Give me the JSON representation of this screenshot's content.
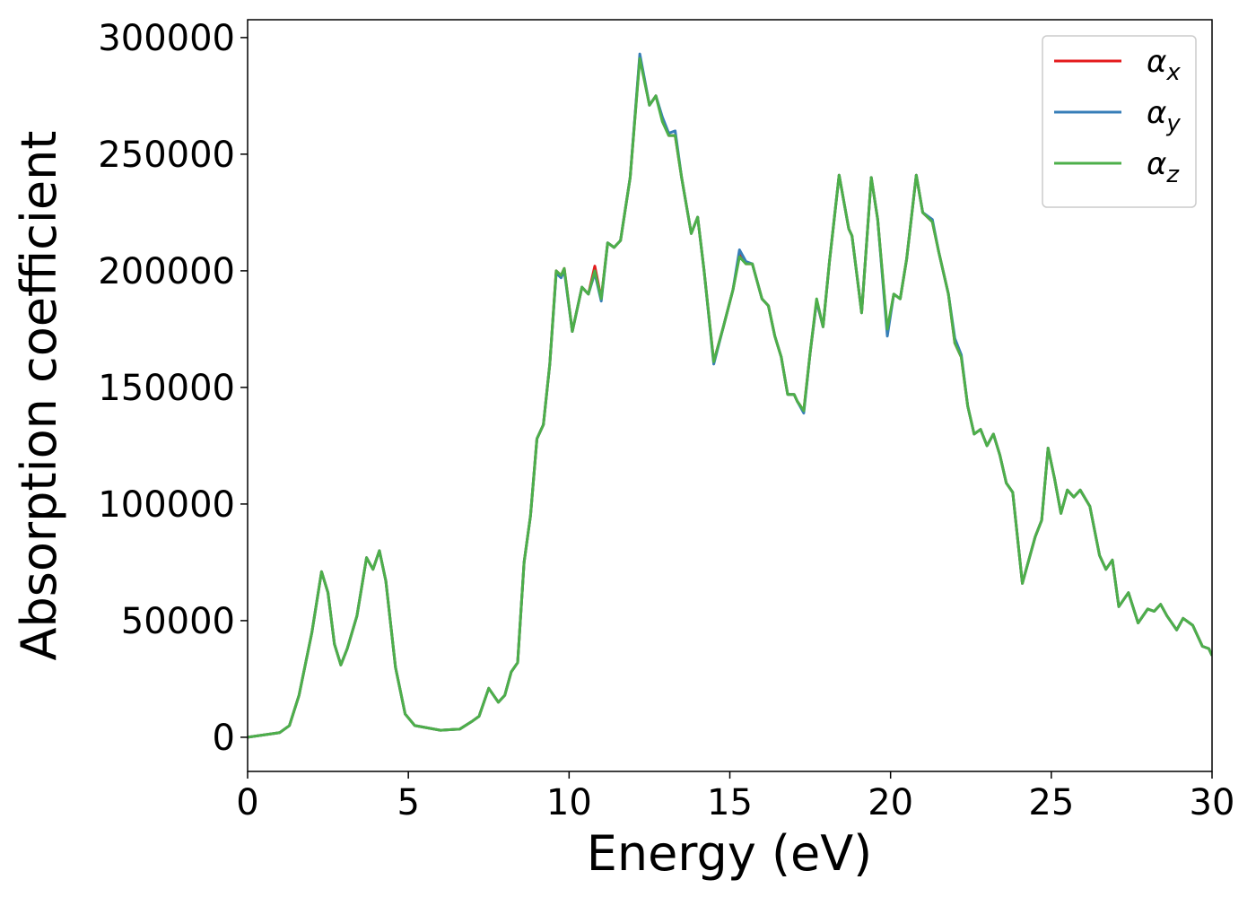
{
  "chart_data": {
    "type": "line",
    "xlabel": "Energy (eV)",
    "ylabel": "Absorption coefficient",
    "xlim": [
      0,
      30
    ],
    "ylim": [
      -14650,
      307650
    ],
    "xticks": [
      0,
      5,
      10,
      15,
      20,
      25,
      30
    ],
    "yticks": [
      0,
      50000,
      100000,
      150000,
      200000,
      250000,
      300000
    ],
    "legend": "upper right",
    "grid": false,
    "x": [
      0,
      1.0,
      1.3,
      1.6,
      2.0,
      2.3,
      2.5,
      2.7,
      2.9,
      3.1,
      3.4,
      3.7,
      3.9,
      4.1,
      4.3,
      4.6,
      4.9,
      5.2,
      6.0,
      6.6,
      7.0,
      7.2,
      7.5,
      7.8,
      8.0,
      8.2,
      8.4,
      8.6,
      8.8,
      9.0,
      9.2,
      9.4,
      9.6,
      9.75,
      9.85,
      10.1,
      10.4,
      10.6,
      10.8,
      11.0,
      11.2,
      11.4,
      11.6,
      11.9,
      12.2,
      12.5,
      12.7,
      12.9,
      13.1,
      13.3,
      13.5,
      13.8,
      14.0,
      14.2,
      14.5,
      14.8,
      15.1,
      15.3,
      15.5,
      15.7,
      16.0,
      16.2,
      16.4,
      16.6,
      16.8,
      17.0,
      17.1,
      17.3,
      17.5,
      17.7,
      17.9,
      18.1,
      18.4,
      18.7,
      18.8,
      19.1,
      19.4,
      19.6,
      19.9,
      20.1,
      20.3,
      20.5,
      20.8,
      21.0,
      21.3,
      21.5,
      21.8,
      22.0,
      22.2,
      22.4,
      22.6,
      22.8,
      23.0,
      23.2,
      23.4,
      23.6,
      23.8,
      24.1,
      24.3,
      24.5,
      24.7,
      24.9,
      25.1,
      25.3,
      25.5,
      25.7,
      25.9,
      26.2,
      26.5,
      26.7,
      26.9,
      27.1,
      27.4,
      27.7,
      28.0,
      28.2,
      28.4,
      28.6,
      28.9,
      29.1,
      29.4,
      29.7,
      29.9,
      30.0
    ],
    "series": [
      {
        "name": "αx",
        "color": "#e41a1c",
        "values": [
          0,
          2000,
          5000,
          18000,
          45000,
          71000,
          62000,
          40000,
          31000,
          38000,
          52000,
          77000,
          72000,
          80000,
          67000,
          30000,
          10000,
          5000,
          3000,
          3500,
          7000,
          9000,
          21000,
          15000,
          18000,
          28000,
          32000,
          75000,
          95000,
          128000,
          134000,
          160000,
          200000,
          198000,
          201000,
          174000,
          193000,
          190000,
          202000,
          188000,
          212000,
          210000,
          213000,
          240000,
          292000,
          271000,
          275000,
          265000,
          258000,
          258000,
          240000,
          216000,
          223000,
          200000,
          161000,
          176000,
          192000,
          207000,
          203000,
          203000,
          188000,
          185000,
          172000,
          163000,
          147000,
          147000,
          144000,
          140000,
          165000,
          187000,
          176000,
          204000,
          241000,
          218000,
          215000,
          182000,
          240000,
          222000,
          174000,
          190000,
          188000,
          205000,
          241000,
          225000,
          221000,
          208000,
          190000,
          169000,
          163000,
          142000,
          130000,
          132000,
          125000,
          130000,
          121000,
          109000,
          105000,
          66000,
          76000,
          86000,
          93000,
          124000,
          111000,
          96000,
          106000,
          103000,
          106000,
          99000,
          78000,
          72000,
          76000,
          56000,
          62000,
          49000,
          55000,
          54000,
          57000,
          52000,
          46000,
          51000,
          48000,
          39000,
          38000,
          35000
        ]
      },
      {
        "name": "αy",
        "color": "#377eb8",
        "values": [
          0,
          2000,
          5000,
          18000,
          45000,
          71000,
          62000,
          40000,
          31000,
          38000,
          52000,
          77000,
          72000,
          80000,
          67000,
          30000,
          10000,
          5000,
          3000,
          3500,
          7000,
          9000,
          21000,
          15000,
          18000,
          28000,
          32000,
          75000,
          95000,
          128000,
          134000,
          160000,
          199000,
          197000,
          200000,
          174000,
          193000,
          190000,
          199000,
          187000,
          212000,
          210000,
          213000,
          240000,
          293000,
          271000,
          275000,
          266000,
          259000,
          260000,
          240000,
          216000,
          223000,
          200000,
          160000,
          176000,
          192000,
          209000,
          204000,
          203000,
          188000,
          185000,
          172000,
          163000,
          147000,
          147000,
          144000,
          139000,
          165000,
          187000,
          176000,
          204000,
          241000,
          218000,
          215000,
          182000,
          240000,
          222000,
          172000,
          190000,
          188000,
          205000,
          241000,
          225000,
          222000,
          208000,
          190000,
          171000,
          164000,
          142000,
          130000,
          132000,
          125000,
          130000,
          121000,
          109000,
          105000,
          66000,
          76000,
          86000,
          93000,
          124000,
          111000,
          96000,
          106000,
          103000,
          106000,
          99000,
          78000,
          72000,
          76000,
          56000,
          62000,
          49000,
          55000,
          54000,
          57000,
          52000,
          46000,
          51000,
          48000,
          39000,
          38000,
          35000
        ]
      },
      {
        "name": "αz",
        "color": "#4daf4a",
        "values": [
          0,
          2000,
          5000,
          18000,
          45000,
          71000,
          62000,
          40000,
          31000,
          38000,
          52000,
          77000,
          72000,
          80000,
          67000,
          30000,
          10000,
          5000,
          3000,
          3500,
          7000,
          9000,
          21000,
          15000,
          18000,
          28000,
          32000,
          75000,
          95000,
          128000,
          134000,
          160000,
          200000,
          198000,
          201000,
          174000,
          193000,
          190000,
          200000,
          188000,
          212000,
          210000,
          213000,
          240000,
          291000,
          271000,
          275000,
          264000,
          258000,
          258000,
          240000,
          216000,
          223000,
          200000,
          161000,
          176000,
          192000,
          206000,
          203000,
          203000,
          188000,
          185000,
          172000,
          163000,
          147000,
          147000,
          144000,
          140000,
          165000,
          188000,
          176000,
          204000,
          241000,
          218000,
          215000,
          182000,
          240000,
          222000,
          175000,
          190000,
          188000,
          205000,
          241000,
          225000,
          221000,
          208000,
          190000,
          169000,
          163000,
          142000,
          130000,
          132000,
          125000,
          130000,
          121000,
          109000,
          105000,
          66000,
          76000,
          86000,
          93000,
          124000,
          111000,
          96000,
          106000,
          103000,
          106000,
          99000,
          78000,
          72000,
          76000,
          56000,
          62000,
          49000,
          55000,
          54000,
          57000,
          52000,
          46000,
          51000,
          48000,
          39000,
          38000,
          35000
        ]
      }
    ]
  }
}
